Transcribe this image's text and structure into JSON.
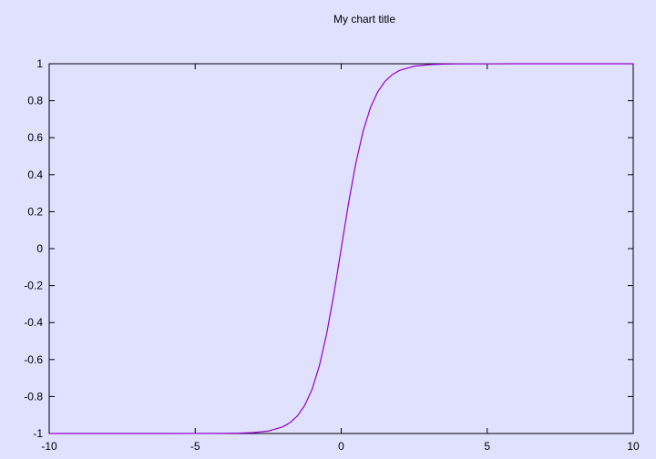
{
  "colors": {
    "background": "#e0e0ff",
    "axis": "#000000",
    "series": "#9400d3"
  },
  "chart_data": {
    "type": "line",
    "title": "My chart title",
    "xlabel": "",
    "ylabel": "",
    "xlim": [
      -10,
      10
    ],
    "ylim": [
      -1,
      1
    ],
    "grid": false,
    "legend": "none",
    "x_ticks": [
      "-10",
      "-5",
      "0",
      "5",
      "10"
    ],
    "y_ticks": [
      "-1",
      "-0.8",
      "-0.6",
      "-0.4",
      "-0.2",
      "0",
      "0.2",
      "0.4",
      "0.6",
      "0.8",
      "1"
    ],
    "series": [
      {
        "color": "#9400d3",
        "x": [
          -10,
          -8,
          -6,
          -4,
          -3.5,
          -3,
          -2.5,
          -2,
          -1.75,
          -1.5,
          -1.25,
          -1,
          -0.75,
          -0.5,
          -0.25,
          0,
          0.25,
          0.5,
          0.75,
          1,
          1.25,
          1.5,
          1.75,
          2,
          2.5,
          3,
          3.5,
          4,
          6,
          8,
          10
        ],
        "y": [
          -1,
          -1,
          -1,
          -0.999,
          -0.998,
          -0.995,
          -0.987,
          -0.964,
          -0.941,
          -0.905,
          -0.848,
          -0.762,
          -0.635,
          -0.462,
          -0.245,
          0,
          0.245,
          0.462,
          0.635,
          0.762,
          0.848,
          0.905,
          0.941,
          0.964,
          0.987,
          0.995,
          0.998,
          0.999,
          1,
          1,
          1
        ]
      }
    ]
  }
}
